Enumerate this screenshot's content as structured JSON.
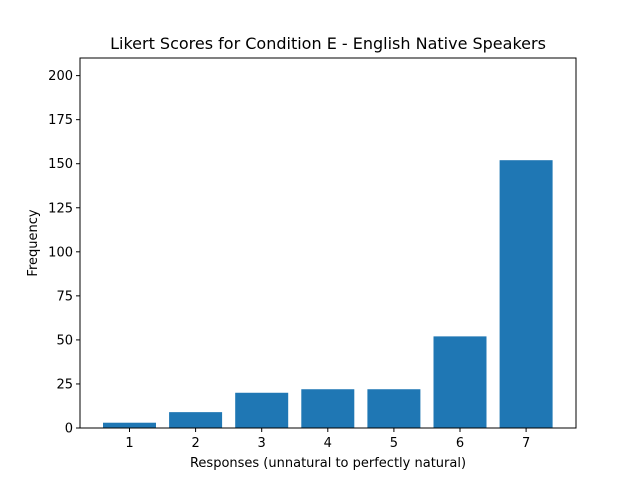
{
  "chart_data": {
    "type": "bar",
    "title": "Likert Scores for Condition E - English Native Speakers",
    "xlabel": "Responses (unnatural to perfectly natural)",
    "ylabel": "Frequency",
    "categories": [
      "1",
      "2",
      "3",
      "4",
      "5",
      "6",
      "7"
    ],
    "values": [
      3,
      9,
      20,
      22,
      22,
      52,
      152
    ],
    "ylim": [
      0,
      210
    ],
    "yticks": [
      0,
      25,
      50,
      75,
      100,
      125,
      150,
      175,
      200
    ],
    "grid": false,
    "bar_color": "#1f77b4"
  }
}
